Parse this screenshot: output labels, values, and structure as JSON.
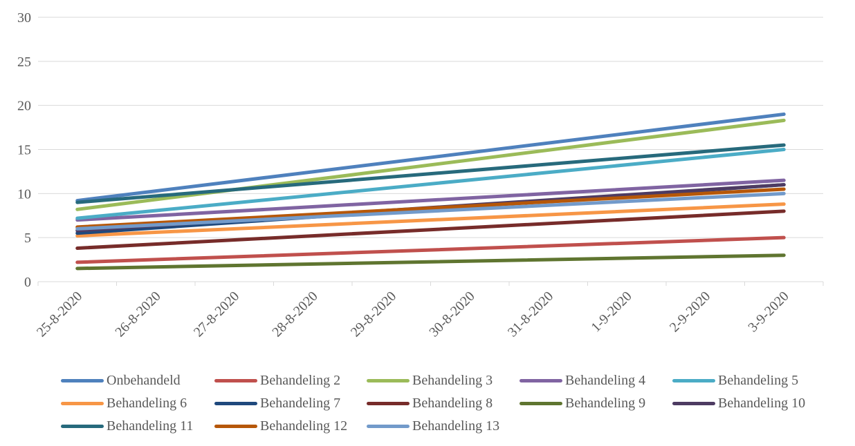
{
  "chart_data": {
    "type": "line",
    "title": "",
    "xlabel": "",
    "ylabel": "",
    "ylim": [
      0,
      30
    ],
    "yticks": [
      "0",
      "5",
      "10",
      "15",
      "20",
      "25",
      "30"
    ],
    "grid": true,
    "legend_position": "bottom",
    "categories": [
      "25-8-2020",
      "26-8-2020",
      "27-8-2020",
      "28-8-2020",
      "29-8-2020",
      "30-8-2020",
      "31-8-2020",
      "1-9-2020",
      "2-9-2020",
      "3-9-2020"
    ],
    "series": [
      {
        "name": "Onbehandeld",
        "color": "#4F81BD",
        "start": 9.2,
        "end": 19.0
      },
      {
        "name": "Behandeling 2",
        "color": "#C0504D",
        "start": 2.2,
        "end": 5.0
      },
      {
        "name": "Behandeling 3",
        "color": "#9BBB59",
        "start": 8.2,
        "end": 18.3
      },
      {
        "name": "Behandeling 4",
        "color": "#8064A2",
        "start": 7.0,
        "end": 11.5
      },
      {
        "name": "Behandeling 5",
        "color": "#4BACC6",
        "start": 7.2,
        "end": 15.0
      },
      {
        "name": "Behandeling 6",
        "color": "#F79646",
        "start": 5.2,
        "end": 8.8
      },
      {
        "name": "Behandeling 7",
        "color": "#1F497D",
        "start": 5.5,
        "end": 11.0
      },
      {
        "name": "Behandeling 8",
        "color": "#772C2A",
        "start": 3.8,
        "end": 8.0
      },
      {
        "name": "Behandeling 9",
        "color": "#5F7530",
        "start": 1.5,
        "end": 3.0
      },
      {
        "name": "Behandeling 10",
        "color": "#4D3B62",
        "start": 5.8,
        "end": 11.0
      },
      {
        "name": "Behandeling 11",
        "color": "#276A7C",
        "start": 9.0,
        "end": 15.5
      },
      {
        "name": "Behandeling 12",
        "color": "#B65708",
        "start": 6.2,
        "end": 10.5
      },
      {
        "name": "Behandeling 13",
        "color": "#729ACA",
        "start": 6.0,
        "end": 10.0
      }
    ]
  }
}
